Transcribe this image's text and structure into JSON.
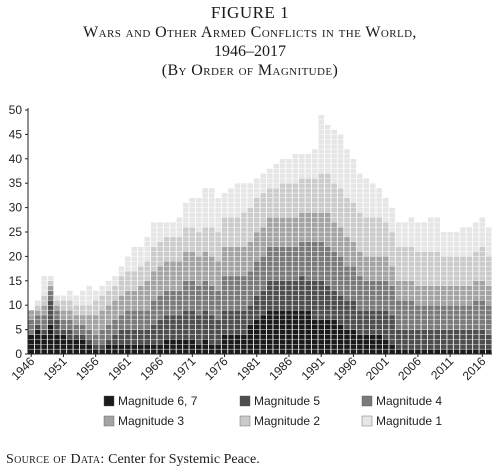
{
  "figure": {
    "label": "FIGURE 1",
    "title": "Wars and Other Armed Conflicts in the World,",
    "years": "1946–2017",
    "subtitle": "(By Order of Magnitude)"
  },
  "source": {
    "label": "Source of Data:",
    "text": "Center for Systemic Peace."
  },
  "colors": {
    "m67": "#1b1b1b",
    "m5": "#4e4e4e",
    "m4": "#7a7a7a",
    "m3": "#a3a3a3",
    "m2": "#cbcbcb",
    "m1": "#e6e6e6"
  },
  "chart_data": {
    "type": "bar",
    "stacked": true,
    "title": "",
    "xlabel": "",
    "ylabel": "",
    "ylim": [
      0,
      50
    ],
    "yticks": [
      "0",
      "5",
      "10",
      "15",
      "20",
      "25",
      "30",
      "35",
      "40",
      "45",
      "50"
    ],
    "xtick_labels": [
      "1946",
      "1951",
      "1956",
      "1961",
      "1966",
      "1971",
      "1976",
      "1981",
      "1986",
      "1991",
      "1996",
      "2001",
      "2006",
      "2011",
      "2016"
    ],
    "categories": [
      1946,
      1947,
      1948,
      1949,
      1950,
      1951,
      1952,
      1953,
      1954,
      1955,
      1956,
      1957,
      1958,
      1959,
      1960,
      1961,
      1962,
      1963,
      1964,
      1965,
      1966,
      1967,
      1968,
      1969,
      1970,
      1971,
      1972,
      1973,
      1974,
      1975,
      1976,
      1977,
      1978,
      1979,
      1980,
      1981,
      1982,
      1983,
      1984,
      1985,
      1986,
      1987,
      1988,
      1989,
      1990,
      1991,
      1992,
      1993,
      1994,
      1995,
      1996,
      1997,
      1998,
      1999,
      2000,
      2001,
      2002,
      2003,
      2004,
      2005,
      2006,
      2007,
      2008,
      2009,
      2010,
      2011,
      2012,
      2013,
      2014,
      2015,
      2016,
      2017
    ],
    "legend_position": "bottom",
    "series": [
      {
        "name": "Magnitude 6, 7",
        "color_key": "m67",
        "values": [
          4,
          5,
          4,
          6,
          4,
          4,
          3,
          3,
          3,
          2,
          1,
          1,
          2,
          2,
          2,
          2,
          2,
          2,
          2,
          2,
          2,
          3,
          3,
          3,
          3,
          3,
          2,
          3,
          2,
          2,
          4,
          4,
          4,
          4,
          6,
          7,
          8,
          9,
          9,
          9,
          9,
          9,
          9,
          9,
          7,
          7,
          7,
          7,
          6,
          5,
          5,
          4,
          4,
          4,
          4,
          3,
          2,
          1,
          1,
          1,
          1,
          1,
          1,
          1,
          1,
          1,
          1,
          1,
          1,
          1,
          1,
          1
        ]
      },
      {
        "name": "Magnitude 5",
        "color_key": "m5",
        "values": [
          0,
          1,
          1,
          5,
          3,
          1,
          2,
          1,
          1,
          1,
          1,
          1,
          1,
          2,
          3,
          3,
          3,
          3,
          3,
          4,
          5,
          5,
          5,
          5,
          6,
          6,
          6,
          6,
          6,
          5,
          5,
          5,
          5,
          5,
          4,
          5,
          5,
          6,
          6,
          6,
          6,
          6,
          7,
          6,
          8,
          8,
          7,
          6,
          6,
          6,
          6,
          5,
          5,
          5,
          5,
          6,
          6,
          4,
          4,
          4,
          4,
          4,
          4,
          4,
          4,
          4,
          4,
          4,
          4,
          4,
          4,
          3
        ]
      },
      {
        "name": "Magnitude 4",
        "color_key": "m4",
        "values": [
          3,
          2,
          3,
          2,
          2,
          2,
          2,
          2,
          2,
          2,
          2,
          3,
          3,
          3,
          3,
          4,
          4,
          4,
          4,
          5,
          5,
          5,
          5,
          5,
          6,
          6,
          6,
          6,
          6,
          6,
          7,
          7,
          7,
          7,
          7,
          7,
          7,
          7,
          7,
          7,
          7,
          7,
          7,
          8,
          8,
          8,
          8,
          8,
          8,
          7,
          7,
          7,
          6,
          6,
          6,
          6,
          6,
          6,
          6,
          6,
          5,
          5,
          5,
          5,
          5,
          5,
          5,
          5,
          5,
          6,
          6,
          6
        ]
      },
      {
        "name": "Magnitude 3",
        "color_key": "m3",
        "values": [
          2,
          1,
          2,
          1,
          1,
          2,
          2,
          2,
          2,
          3,
          4,
          4,
          4,
          4,
          4,
          4,
          4,
          5,
          6,
          6,
          6,
          6,
          6,
          6,
          6,
          6,
          6,
          6,
          6,
          6,
          6,
          6,
          6,
          6,
          6,
          6,
          6,
          6,
          6,
          6,
          6,
          6,
          6,
          6,
          6,
          6,
          7,
          6,
          6,
          6,
          5,
          5,
          5,
          5,
          5,
          5,
          4,
          4,
          4,
          4,
          4,
          4,
          4,
          4,
          4,
          4,
          4,
          4,
          4,
          4,
          4,
          4
        ]
      },
      {
        "name": "Magnitude 2",
        "color_key": "m2",
        "values": [
          0,
          1,
          2,
          1,
          1,
          2,
          2,
          2,
          2,
          2,
          3,
          3,
          3,
          3,
          4,
          4,
          4,
          4,
          4,
          5,
          5,
          5,
          5,
          5,
          5,
          5,
          5,
          5,
          6,
          6,
          6,
          6,
          6,
          7,
          7,
          7,
          7,
          6,
          6,
          7,
          7,
          7,
          7,
          7,
          7,
          8,
          8,
          8,
          8,
          8,
          8,
          8,
          8,
          8,
          8,
          7,
          7,
          7,
          7,
          7,
          7,
          7,
          7,
          7,
          6,
          6,
          6,
          6,
          6,
          6,
          7,
          6
        ]
      },
      {
        "name": "Magnitude 1",
        "color_key": "m1",
        "values": [
          0,
          1,
          4,
          1,
          1,
          1,
          2,
          2,
          3,
          4,
          2,
          2,
          2,
          2,
          2,
          3,
          5,
          4,
          5,
          5,
          4,
          3,
          3,
          4,
          5,
          6,
          7,
          8,
          8,
          7,
          5,
          6,
          7,
          6,
          5,
          4,
          4,
          4,
          5,
          5,
          5,
          6,
          5,
          5,
          6,
          12,
          10,
          11,
          11,
          10,
          9,
          8,
          8,
          7,
          6,
          5,
          5,
          5,
          5,
          6,
          6,
          6,
          7,
          7,
          5,
          5,
          5,
          6,
          6,
          6,
          6,
          6
        ]
      }
    ]
  }
}
